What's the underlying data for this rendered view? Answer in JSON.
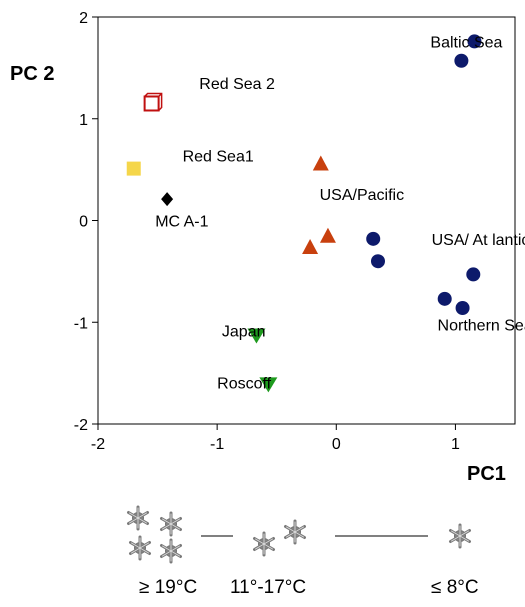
{
  "chart_data": {
    "type": "scatter",
    "xlabel": "PC1",
    "ylabel": "PC 2",
    "xlim": [
      -2,
      1.5
    ],
    "ylim": [
      -2,
      2
    ],
    "xticks": [
      "-2",
      "-1",
      "0",
      "1"
    ],
    "yticks": [
      "2",
      "1",
      "0",
      "-1",
      "-2"
    ],
    "grid": false,
    "series": [
      {
        "marker": "circle",
        "color": "#0d1a6b",
        "points": [
          {
            "x": 1.05,
            "y": 1.57
          },
          {
            "x": 1.16,
            "y": 1.76
          },
          {
            "x": 0.31,
            "y": -0.18
          },
          {
            "x": 0.35,
            "y": -0.4
          },
          {
            "x": 1.15,
            "y": -0.53
          },
          {
            "x": 0.91,
            "y": -0.77
          },
          {
            "x": 1.06,
            "y": -0.86
          }
        ]
      },
      {
        "marker": "triangle-up",
        "color": "#c8400e",
        "points": [
          {
            "x": -0.13,
            "y": 0.56
          },
          {
            "x": -0.07,
            "y": -0.15
          },
          {
            "x": -0.22,
            "y": -0.26
          }
        ]
      },
      {
        "marker": "triangle-down",
        "color": "#1e9a1e",
        "points": [
          {
            "x": -0.67,
            "y": -1.13
          },
          {
            "x": -0.57,
            "y": -1.61
          }
        ]
      },
      {
        "marker": "square-open",
        "color": "#c01010",
        "points": [
          {
            "x": -1.55,
            "y": 1.15
          }
        ]
      },
      {
        "marker": "square",
        "color": "#f5d64a",
        "points": [
          {
            "x": -1.7,
            "y": 0.51
          }
        ]
      },
      {
        "marker": "diamond",
        "color": "#000000",
        "points": [
          {
            "x": -1.42,
            "y": 0.21
          }
        ]
      }
    ],
    "annotations": [
      {
        "text": "Baltic Sea",
        "x": 0.79,
        "y": 1.7
      },
      {
        "text": "Red Sea 2",
        "x": -1.15,
        "y": 1.29
      },
      {
        "text": "Red Sea1",
        "x": -1.29,
        "y": 0.58
      },
      {
        "text": "MC A-1",
        "x": -1.52,
        "y": -0.06
      },
      {
        "text": "USA/Pacific",
        "x": -0.14,
        "y": 0.2
      },
      {
        "text": "USA/ At lantic",
        "x": 0.8,
        "y": -0.24
      },
      {
        "text": "Northern Sea",
        "x": 0.85,
        "y": -1.08
      },
      {
        "text": "Japan",
        "x": -0.96,
        "y": -1.14
      },
      {
        "text": "Roscoff",
        "x": -1.0,
        "y": -1.65
      }
    ]
  },
  "legend_bottom": {
    "items": [
      {
        "label": "≥ 19°C",
        "crystals": 4
      },
      {
        "label": "11°-17°C",
        "crystals": 2
      },
      {
        "label": "≤ 8°C",
        "crystals": 1
      }
    ],
    "crystal_icon": "snowflake-crystal-icon"
  }
}
